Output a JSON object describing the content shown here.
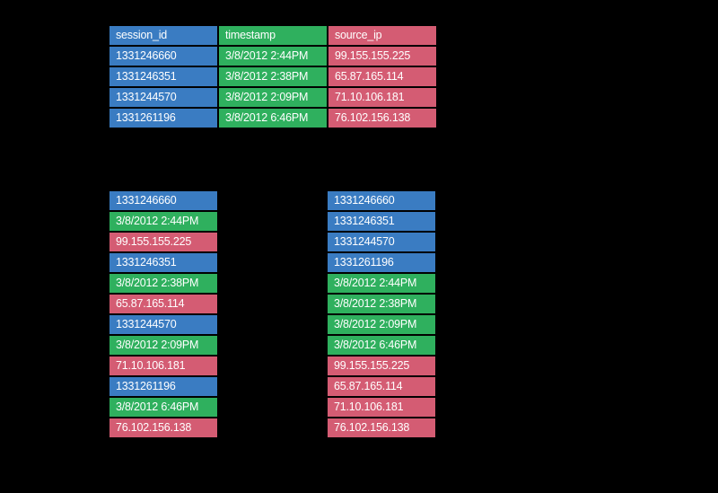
{
  "colors": {
    "background": "#000000",
    "blue": "#3a7cc2",
    "green": "#2fb05e",
    "red": "#d45c73",
    "text": "#ffffff"
  },
  "table": {
    "columns": [
      {
        "key": "session_id",
        "label": "session_id",
        "color": "blue"
      },
      {
        "key": "timestamp",
        "label": "timestamp",
        "color": "green"
      },
      {
        "key": "source_ip",
        "label": "source_ip",
        "color": "red"
      }
    ],
    "rows": [
      [
        "1331246660",
        "3/8/2012 2:44PM",
        "99.155.155.225"
      ],
      [
        "1331246351",
        "3/8/2012 2:38PM",
        "65.87.165.114"
      ],
      [
        "1331244570",
        "3/8/2012 2:09PM",
        "71.10.106.181"
      ],
      [
        "1331261196",
        "3/8/2012 6:46PM",
        "76.102.156.138"
      ]
    ]
  },
  "row_store": {
    "cells": [
      {
        "text": "1331246660",
        "color": "blue"
      },
      {
        "text": "3/8/2012 2:44PM",
        "color": "green"
      },
      {
        "text": "99.155.155.225",
        "color": "red"
      },
      {
        "text": "1331246351",
        "color": "blue"
      },
      {
        "text": "3/8/2012 2:38PM",
        "color": "green"
      },
      {
        "text": "65.87.165.114",
        "color": "red"
      },
      {
        "text": "1331244570",
        "color": "blue"
      },
      {
        "text": "3/8/2012 2:09PM",
        "color": "green"
      },
      {
        "text": "71.10.106.181",
        "color": "red"
      },
      {
        "text": "1331261196",
        "color": "blue"
      },
      {
        "text": "3/8/2012 6:46PM",
        "color": "green"
      },
      {
        "text": "76.102.156.138",
        "color": "red"
      }
    ]
  },
  "column_store": {
    "cells": [
      {
        "text": "1331246660",
        "color": "blue"
      },
      {
        "text": "1331246351",
        "color": "blue"
      },
      {
        "text": "1331244570",
        "color": "blue"
      },
      {
        "text": "1331261196",
        "color": "blue"
      },
      {
        "text": "3/8/2012 2:44PM",
        "color": "green"
      },
      {
        "text": "3/8/2012 2:38PM",
        "color": "green"
      },
      {
        "text": "3/8/2012 2:09PM",
        "color": "green"
      },
      {
        "text": "3/8/2012 6:46PM",
        "color": "green"
      },
      {
        "text": "99.155.155.225",
        "color": "red"
      },
      {
        "text": "65.87.165.114",
        "color": "red"
      },
      {
        "text": "71.10.106.181",
        "color": "red"
      },
      {
        "text": "76.102.156.138",
        "color": "red"
      }
    ]
  }
}
